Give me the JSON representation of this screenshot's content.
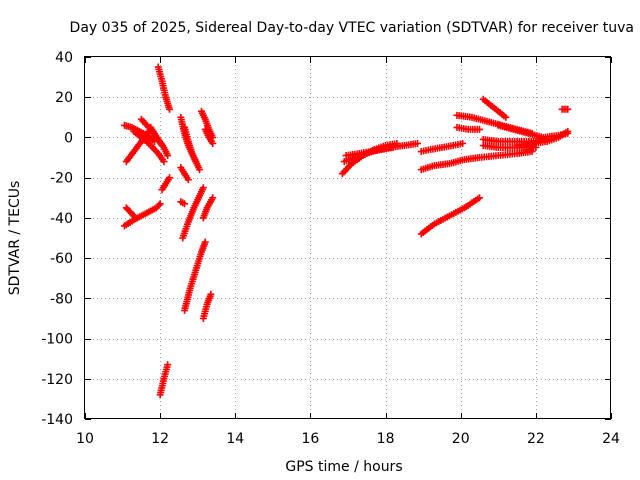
{
  "chart_data": {
    "type": "scatter",
    "title": "Day 035 of 2025, Sidereal Day-to-day VTEC variation (SDTVAR) for receiver tuva",
    "xlabel": "GPS time / hours",
    "ylabel": "SDTVAR / TECUs",
    "xlim": [
      10,
      24
    ],
    "ylim": [
      -140,
      40
    ],
    "xticks": [
      10,
      12,
      14,
      16,
      18,
      20,
      22,
      24
    ],
    "yticks": [
      40,
      20,
      0,
      -20,
      -40,
      -60,
      -80,
      -100,
      -120,
      -140
    ],
    "grid": true,
    "marker": "plus",
    "color": "#ff0000",
    "series": [
      {
        "name": "arc1",
        "x": [
          11.05,
          11.25,
          11.45,
          11.65,
          11.85
        ],
        "y": [
          6,
          5,
          3,
          1,
          -2
        ]
      },
      {
        "name": "arc2",
        "x": [
          11.1,
          11.3,
          11.5,
          11.7
        ],
        "y": [
          -12,
          -7,
          -2,
          3
        ]
      },
      {
        "name": "arc3",
        "x": [
          11.3,
          11.5,
          11.7,
          11.95,
          12.1
        ],
        "y": [
          3,
          0,
          -3,
          -8,
          -12
        ]
      },
      {
        "name": "arc4",
        "x": [
          11.5,
          11.7,
          11.9,
          12.1,
          12.2
        ],
        "y": [
          9,
          5,
          0,
          -5,
          -9
        ]
      },
      {
        "name": "arc5",
        "x": [
          11.75,
          11.85,
          11.95,
          12.05
        ],
        "y": [
          5,
          2,
          -1,
          -4
        ]
      },
      {
        "name": "arc6",
        "x": [
          11.05,
          11.3,
          11.6,
          11.9,
          12.0
        ],
        "y": [
          -44,
          -41,
          -38,
          -35,
          -33
        ]
      },
      {
        "name": "arc7",
        "x": [
          11.1,
          11.2,
          11.3
        ],
        "y": [
          -35,
          -37,
          -39
        ]
      },
      {
        "name": "arc8",
        "x": [
          11.95,
          12.05,
          12.15,
          12.25
        ],
        "y": [
          35,
          28,
          20,
          14
        ]
      },
      {
        "name": "arc9",
        "x": [
          12.05,
          12.15,
          12.25
        ],
        "y": [
          -26,
          -23,
          -20
        ]
      },
      {
        "name": "arc10",
        "x": [
          12.0,
          12.1,
          12.2
        ],
        "y": [
          -128,
          -120,
          -113
        ]
      },
      {
        "name": "arc11",
        "x": [
          12.55,
          12.65,
          12.75,
          12.85,
          12.95
        ],
        "y": [
          10,
          2,
          -4,
          -8,
          -12
        ]
      },
      {
        "name": "arc12",
        "x": [
          12.65,
          12.75,
          12.85,
          12.95,
          13.05
        ],
        "y": [
          5,
          -2,
          -8,
          -12,
          -16
        ]
      },
      {
        "name": "arc13",
        "x": [
          12.55,
          12.65,
          12.75
        ],
        "y": [
          -15,
          -18,
          -21
        ]
      },
      {
        "name": "arc14",
        "x": [
          12.55,
          12.65
        ],
        "y": [
          -32,
          -33
        ]
      },
      {
        "name": "arc15",
        "x": [
          12.6,
          12.75,
          12.9,
          13.05,
          13.15
        ],
        "y": [
          -50,
          -42,
          -35,
          -29,
          -25
        ]
      },
      {
        "name": "arc16",
        "x": [
          12.65,
          12.8,
          12.95,
          13.1,
          13.2
        ],
        "y": [
          -86,
          -75,
          -66,
          -57,
          -52
        ]
      },
      {
        "name": "arc17",
        "x": [
          13.15,
          13.25,
          13.35
        ],
        "y": [
          -90,
          -83,
          -78
        ]
      },
      {
        "name": "arc18",
        "x": [
          13.15,
          13.25,
          13.4
        ],
        "y": [
          -40,
          -35,
          -30
        ]
      },
      {
        "name": "arc19",
        "x": [
          13.1,
          13.2,
          13.3,
          13.4
        ],
        "y": [
          13,
          9,
          4,
          0
        ]
      },
      {
        "name": "arc20",
        "x": [
          13.2,
          13.3,
          13.4
        ],
        "y": [
          4,
          0,
          -3
        ]
      },
      {
        "name": "arc21",
        "x": [
          16.85,
          17.1,
          17.4,
          17.7,
          18.0,
          18.3
        ],
        "y": [
          -18,
          -13,
          -9,
          -6,
          -4,
          -3
        ]
      },
      {
        "name": "arc22",
        "x": [
          16.9,
          17.2,
          17.5,
          17.8,
          18.1,
          18.5,
          18.85
        ],
        "y": [
          -12,
          -10,
          -8,
          -6,
          -5,
          -4,
          -3
        ]
      },
      {
        "name": "arc23",
        "x": [
          16.95,
          17.3,
          17.6,
          17.9,
          18.2
        ],
        "y": [
          -9,
          -8,
          -7,
          -6,
          -5
        ]
      },
      {
        "name": "arc24",
        "x": [
          18.95,
          19.3,
          19.7,
          20.1,
          20.5
        ],
        "y": [
          -48,
          -43,
          -39,
          -35,
          -30
        ]
      },
      {
        "name": "arc25",
        "x": [
          18.95,
          19.3,
          19.7,
          20.1,
          20.5,
          21.0,
          21.5,
          21.9
        ],
        "y": [
          -16,
          -14,
          -13,
          -11,
          -10,
          -9,
          -8,
          -7
        ]
      },
      {
        "name": "arc26",
        "x": [
          18.95,
          19.2,
          19.5,
          19.8,
          20.05
        ],
        "y": [
          -7,
          -6,
          -5,
          -4,
          -3
        ]
      },
      {
        "name": "arc27",
        "x": [
          19.9,
          20.2,
          20.5
        ],
        "y": [
          5,
          4,
          4
        ]
      },
      {
        "name": "arc28",
        "x": [
          19.9,
          20.3,
          20.7,
          21.1,
          21.5,
          21.9
        ],
        "y": [
          11,
          10,
          8,
          6,
          4,
          2
        ]
      },
      {
        "name": "arc29",
        "x": [
          20.6,
          20.8,
          21.0,
          21.2
        ],
        "y": [
          19,
          16,
          13,
          10
        ]
      },
      {
        "name": "arc30",
        "x": [
          20.6,
          21.0,
          21.5,
          22.0,
          22.3
        ],
        "y": [
          -1,
          -2,
          -2,
          -2,
          -1
        ]
      },
      {
        "name": "arc31",
        "x": [
          20.6,
          21.0,
          21.5,
          22.0
        ],
        "y": [
          -4,
          -5,
          -5,
          -5
        ]
      },
      {
        "name": "arc32",
        "x": [
          21.0,
          21.4,
          21.8,
          22.2,
          22.6,
          22.85
        ],
        "y": [
          6,
          4,
          2,
          0,
          1,
          2
        ]
      },
      {
        "name": "arc33",
        "x": [
          21.5,
          21.9,
          22.3,
          22.6,
          22.85
        ],
        "y": [
          -4,
          -3,
          -2,
          0,
          3
        ]
      },
      {
        "name": "arc34",
        "x": [
          22.7,
          22.85
        ],
        "y": [
          14,
          14
        ]
      }
    ]
  }
}
